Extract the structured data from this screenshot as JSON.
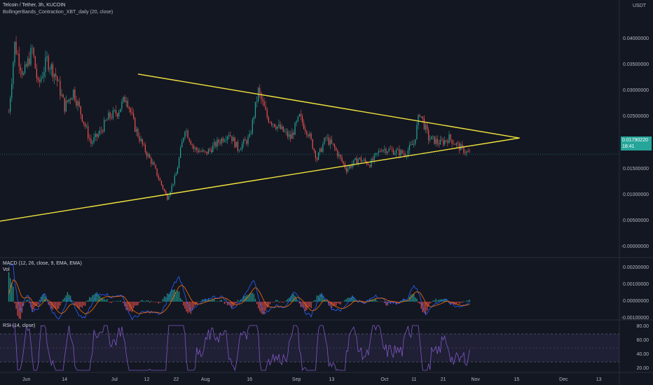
{
  "header": {
    "title": "Telcoin / Tether, 3h, KUCOIN",
    "indicator": "BollingerBands_Contraction_XBT_daily (20, close)",
    "macd_label": "MACD (12, 26, close, 9, EMA, EMA)",
    "vol_label": "Vol",
    "rsi_label": "RSI (14, close)",
    "currency": "USDT"
  },
  "last_price": {
    "value": "0.01790220",
    "countdown": "18:41",
    "color": "#26a69a"
  },
  "colors": {
    "bull": "#26a69a",
    "bear": "#ef5350",
    "trend": "#f2e33c",
    "macd": "#2962ff",
    "signal": "#ff6d00",
    "rsi": "#7e57c2"
  },
  "price_axis": [
    "0.04000000",
    "0.03500000",
    "0.03000000",
    "0.02500000",
    "0.02000000",
    "0.01500000",
    "0.01000000",
    "0.00500000",
    "-0.00000000"
  ],
  "macd_axis": [
    "0.00200000",
    "0.00100000",
    "0.00000000",
    "-0.00100000"
  ],
  "rsi_axis": [
    "80.00",
    "60.00",
    "40.00",
    "20.00"
  ],
  "x_axis": [
    "Jun",
    "14",
    "Jul",
    "12",
    "22",
    "Aug",
    "16",
    "Sep",
    "13",
    "Oct",
    "11",
    "21",
    "Nov",
    "15",
    "Dec",
    "13"
  ],
  "chart_data": {
    "type": "candlestick",
    "title": "Telcoin / Tether, 3h, KUCOIN",
    "ylim": [
      -0.0016,
      0.0435
    ],
    "price_path": [
      [
        "2021-05-26",
        0.026
      ],
      [
        "2021-05-28",
        0.039
      ],
      [
        "2021-05-31",
        0.033
      ],
      [
        "2021-06-03",
        0.038
      ],
      [
        "2021-06-05",
        0.031
      ],
      [
        "2021-06-08",
        0.036
      ],
      [
        "2021-06-11",
        0.033
      ],
      [
        "2021-06-14",
        0.027
      ],
      [
        "2021-06-17",
        0.03
      ],
      [
        "2021-06-20",
        0.025
      ],
      [
        "2021-06-23",
        0.02
      ],
      [
        "2021-06-26",
        0.022
      ],
      [
        "2021-06-29",
        0.025
      ],
      [
        "2021-07-02",
        0.026
      ],
      [
        "2021-07-05",
        0.029
      ],
      [
        "2021-07-08",
        0.023
      ],
      [
        "2021-07-11",
        0.019
      ],
      [
        "2021-07-14",
        0.016
      ],
      [
        "2021-07-17",
        0.012
      ],
      [
        "2021-07-19",
        0.0095
      ],
      [
        "2021-07-22",
        0.014
      ],
      [
        "2021-07-25",
        0.023
      ],
      [
        "2021-07-28",
        0.019
      ],
      [
        "2021-08-01",
        0.018
      ],
      [
        "2021-08-05",
        0.02
      ],
      [
        "2021-08-09",
        0.022
      ],
      [
        "2021-08-12",
        0.019
      ],
      [
        "2021-08-16",
        0.021
      ],
      [
        "2021-08-19",
        0.03
      ],
      [
        "2021-08-22",
        0.025
      ],
      [
        "2021-08-26",
        0.023
      ],
      [
        "2021-08-30",
        0.021
      ],
      [
        "2021-09-02",
        0.025
      ],
      [
        "2021-09-05",
        0.022
      ],
      [
        "2021-09-08",
        0.017
      ],
      [
        "2021-09-11",
        0.021
      ],
      [
        "2021-09-14",
        0.019
      ],
      [
        "2021-09-18",
        0.015
      ],
      [
        "2021-09-22",
        0.017
      ],
      [
        "2021-09-26",
        0.016
      ],
      [
        "2021-09-30",
        0.019
      ],
      [
        "2021-10-04",
        0.0185
      ],
      [
        "2021-10-08",
        0.018
      ],
      [
        "2021-10-11",
        0.02
      ],
      [
        "2021-10-13",
        0.026
      ],
      [
        "2021-10-16",
        0.021
      ],
      [
        "2021-10-20",
        0.02
      ],
      [
        "2021-10-23",
        0.021
      ],
      [
        "2021-10-27",
        0.019
      ],
      [
        "2021-10-30",
        0.0179
      ]
    ],
    "trendlines": [
      {
        "name": "resistance",
        "points": [
          [
            "2021-07-09",
            0.0333
          ],
          [
            "2021-11-16",
            0.021
          ]
        ]
      },
      {
        "name": "support",
        "points": [
          [
            "2021-05-23",
            0.005
          ],
          [
            "2021-11-16",
            0.021
          ]
        ]
      }
    ],
    "macd_ylim": [
      -0.0015,
      0.0025
    ],
    "rsi_ylim": [
      15,
      85
    ],
    "rsi_bands": [
      70,
      30
    ],
    "last_price": 0.0179022,
    "currency": "USDT"
  }
}
